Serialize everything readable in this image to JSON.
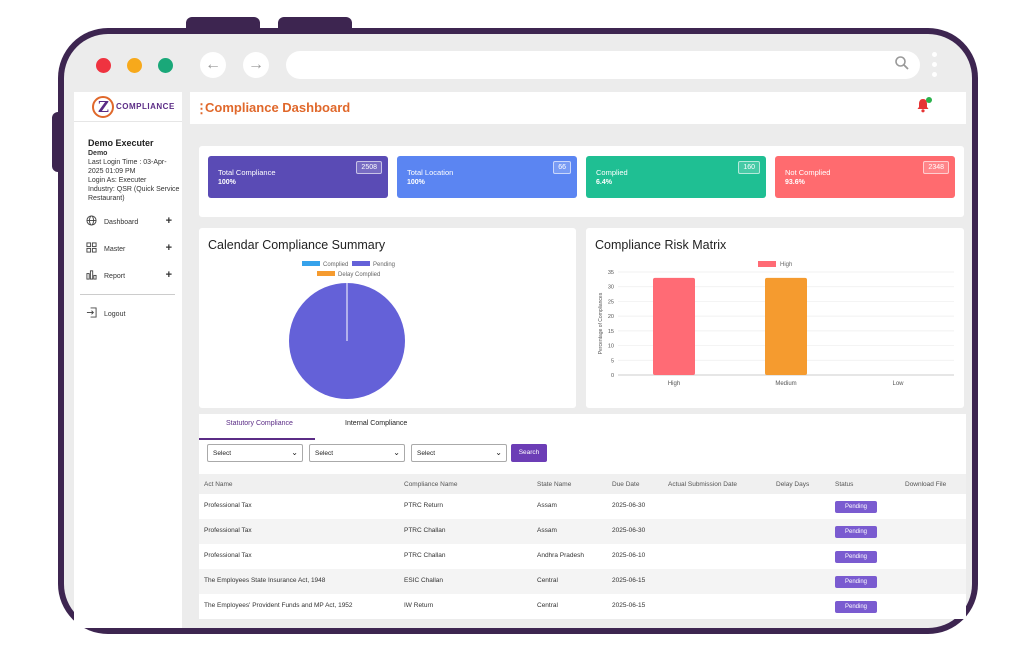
{
  "brand": {
    "logo_text": "COMPLIANCE"
  },
  "header": {
    "title": "Compliance Dashboard"
  },
  "user": {
    "name": "Demo Executer",
    "subname": "Demo",
    "last_login": "Last Login Time : 03-Apr-2025 01:09 PM",
    "login_as": "Login As: Executer",
    "industry": "Industry: QSR (Quick Service Restaurant)"
  },
  "menu": [
    {
      "label": "Dashboard",
      "icon": "globe-icon"
    },
    {
      "label": "Master",
      "icon": "grid-icon"
    },
    {
      "label": "Report",
      "icon": "bar-chart-icon"
    },
    {
      "label": "Logout",
      "icon": "logout-icon"
    }
  ],
  "cards": [
    {
      "label": "Total Compliance",
      "value": "2508",
      "pct": "100%",
      "color": "#5a4bb5"
    },
    {
      "label": "Total Location",
      "value": "66",
      "pct": "100%",
      "color": "#5b85f2"
    },
    {
      "label": "Complied",
      "value": "160",
      "pct": "6.4%",
      "color": "#1fbf93"
    },
    {
      "label": "Not Complied",
      "value": "2348",
      "pct": "93.6%",
      "color": "#ff6b6f"
    }
  ],
  "chart_data": [
    {
      "type": "pie",
      "title": "Calendar Compliance Summary",
      "legend": [
        "Complied",
        "Pending",
        "Delay Complied"
      ],
      "values": [
        0,
        100,
        0
      ],
      "colors": [
        "#36a2eb",
        "#6461d8",
        "#f59b2f"
      ]
    },
    {
      "type": "bar",
      "title": "Compliance Risk Matrix",
      "legend": [
        "High"
      ],
      "categories": [
        "High",
        "Medium",
        "Low"
      ],
      "values": [
        33,
        33,
        0
      ],
      "colors": [
        "#ff6b75",
        "#f59b2f",
        "#cccccc"
      ],
      "ylabel": "Percentage of Compliances",
      "ylim": [
        0,
        35
      ],
      "yticks": [
        "35",
        "30",
        "25",
        "20",
        "15",
        "10",
        "5",
        "0"
      ]
    }
  ],
  "tabs": [
    "Statutory Compliance",
    "Internal Compliance"
  ],
  "filters": {
    "select_label": "Select",
    "search_label": "Search"
  },
  "table": {
    "columns": [
      "Act Name",
      "Compliance Name",
      "State Name",
      "Due Date",
      "Actual Submission Date",
      "Delay Days",
      "Status",
      "Download File"
    ],
    "rows": [
      {
        "act": "Professional Tax",
        "compliance": "PTRC Return",
        "state": "Assam",
        "due": "2025-06-30",
        "status": "Pending"
      },
      {
        "act": "Professional Tax",
        "compliance": "PTRC Challan",
        "state": "Assam",
        "due": "2025-06-30",
        "status": "Pending"
      },
      {
        "act": "Professional Tax",
        "compliance": "PTRC Challan",
        "state": "Andhra Pradesh",
        "due": "2025-06-10",
        "status": "Pending"
      },
      {
        "act": "The Employees State Insurance Act, 1948",
        "compliance": "ESIC Challan",
        "state": "Central",
        "due": "2025-06-15",
        "status": "Pending"
      },
      {
        "act": "The Employees' Provident Funds and MP Act, 1952",
        "compliance": "IW Return",
        "state": "Central",
        "due": "2025-06-15",
        "status": "Pending"
      }
    ]
  },
  "colors": {
    "frame": "#3d2550",
    "accent": "#e0682b",
    "primary": "#5b2c86"
  }
}
